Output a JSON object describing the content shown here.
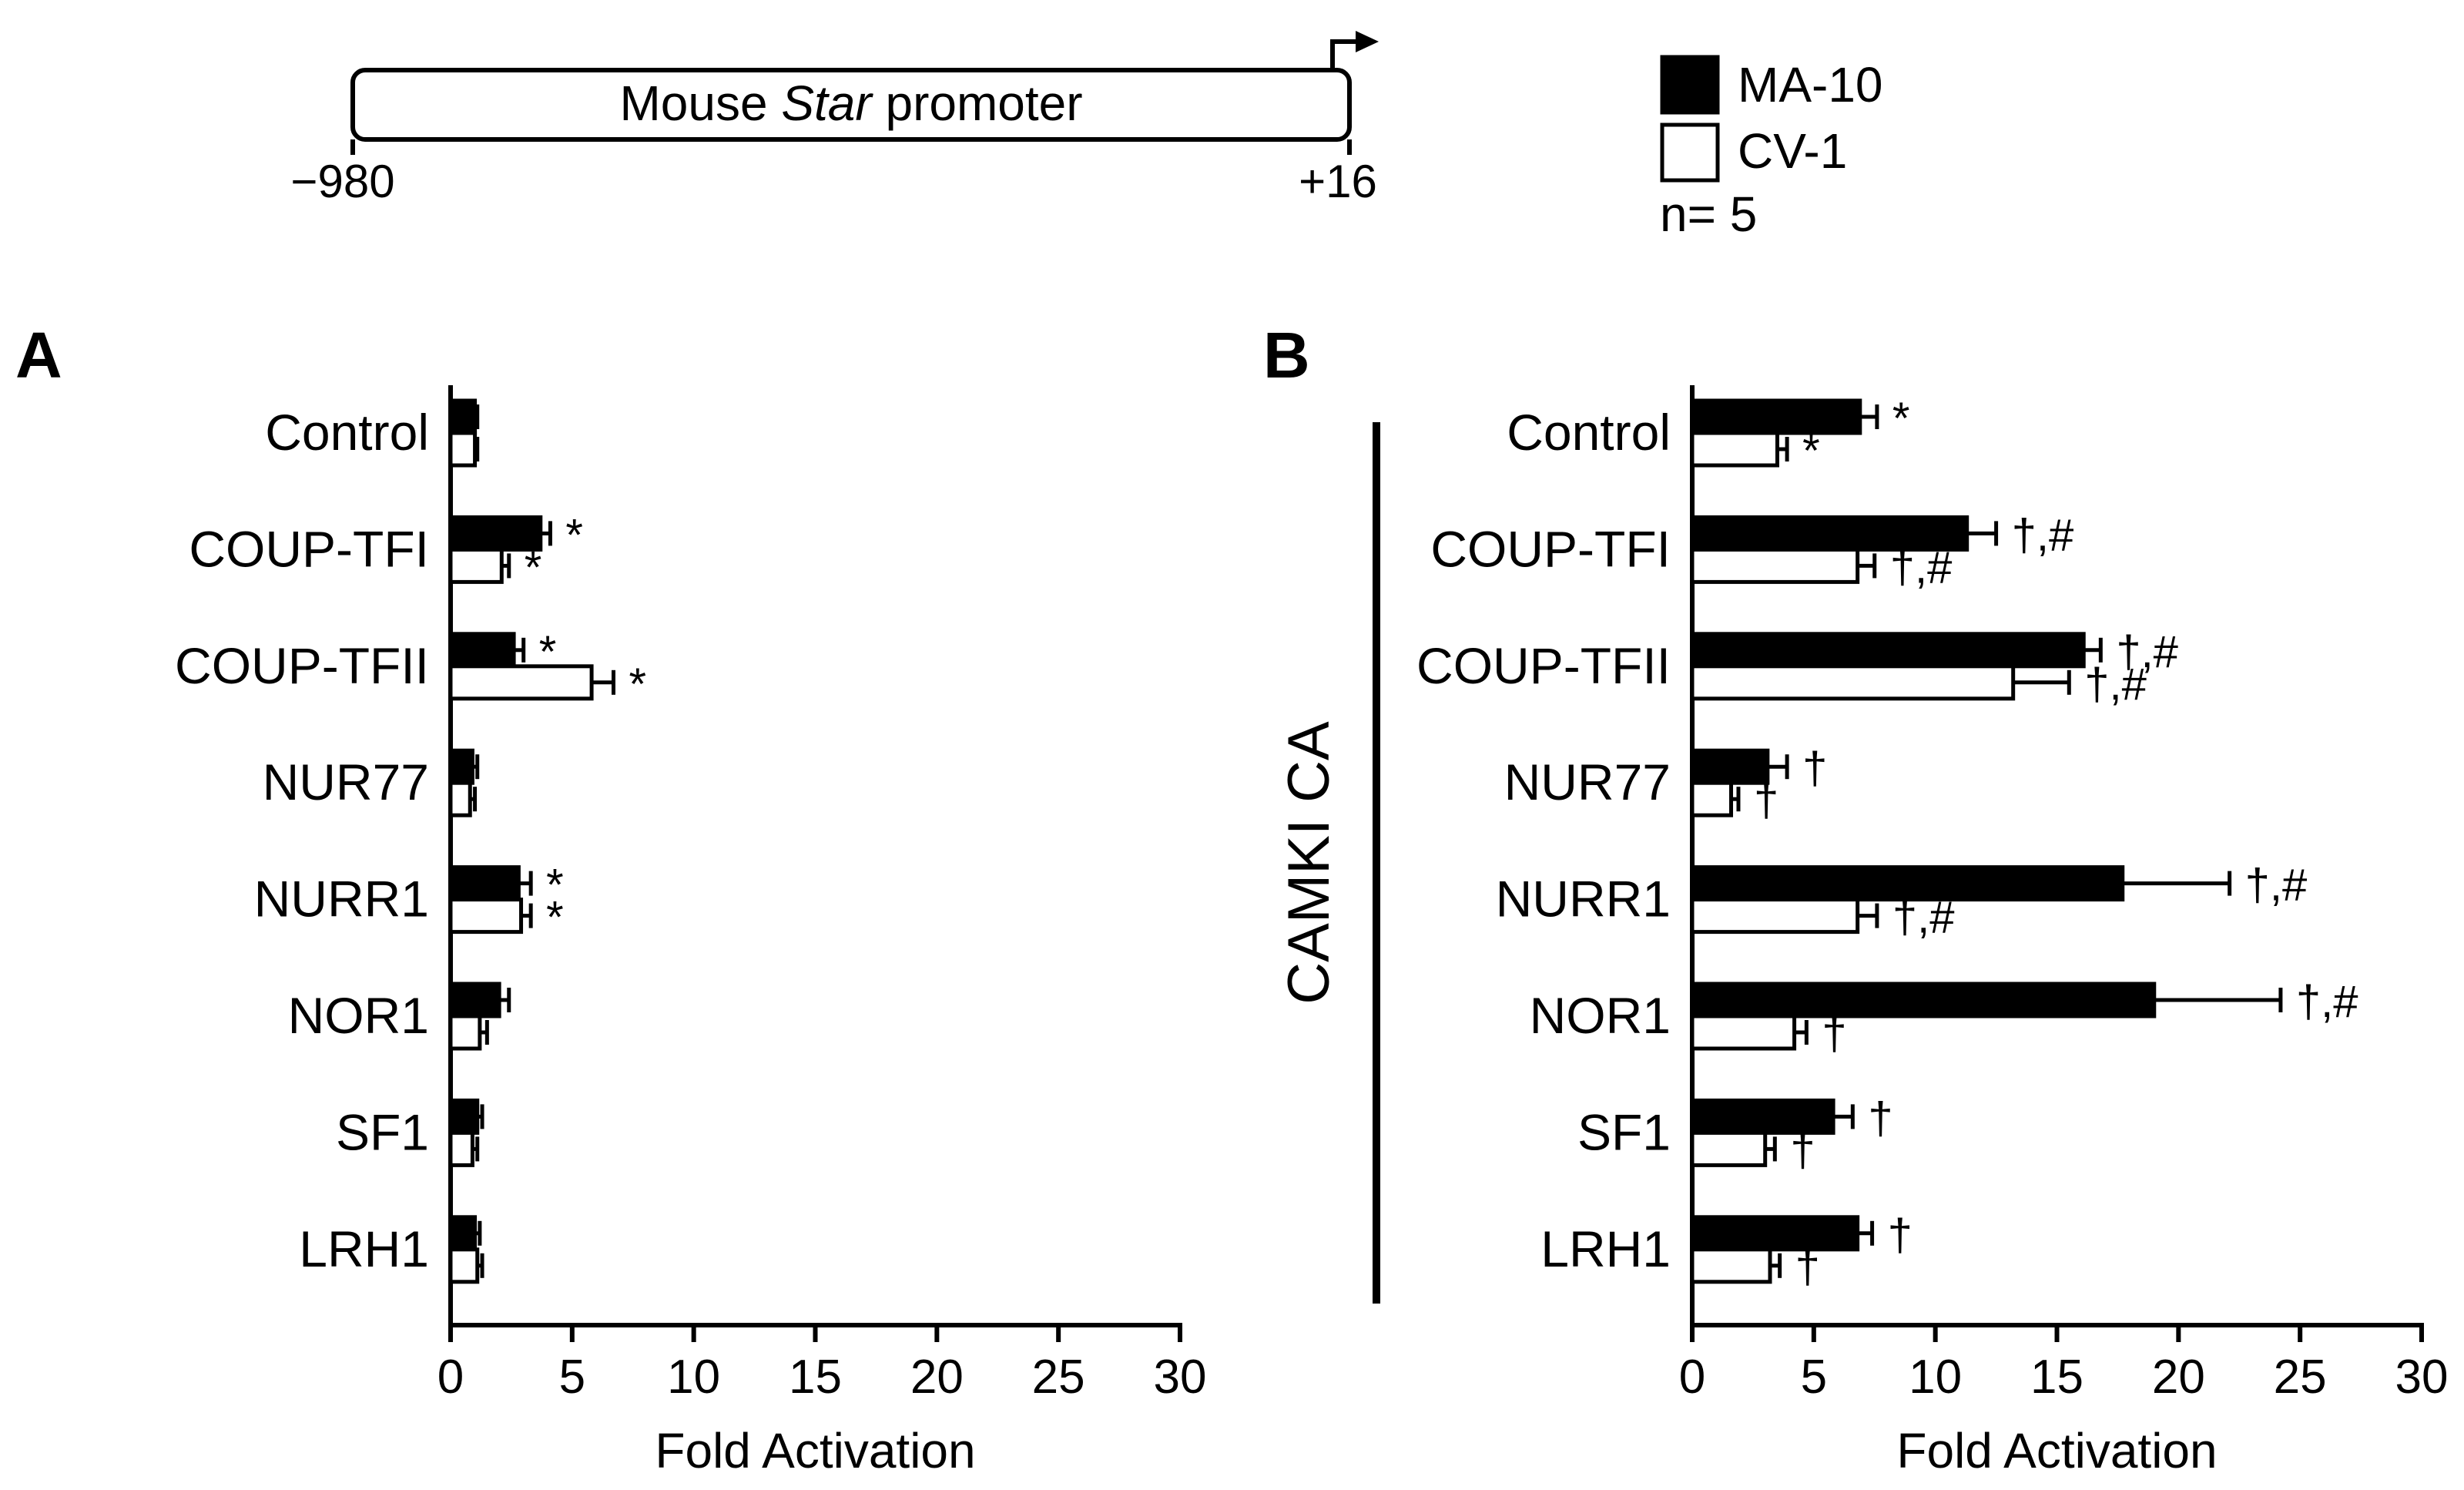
{
  "promoter": {
    "label_prefix": "Mouse ",
    "label_italic": "Star",
    "label_suffix": " promoter",
    "start_label": "−980",
    "end_label": "+16"
  },
  "legend": {
    "series": [
      {
        "name": "MA-10",
        "fill": "#000000"
      },
      {
        "name": "CV-1",
        "fill": "#ffffff"
      }
    ],
    "n_label": "n= 5"
  },
  "colors": {
    "ma10": "#000000",
    "cv1": "#ffffff",
    "stroke": "#000000"
  },
  "chart_data": [
    {
      "type": "bar",
      "orientation": "horizontal",
      "panel": "A",
      "title": "",
      "xlabel": "Fold Activation",
      "ylabel": "",
      "xlim": [
        0,
        30
      ],
      "xticks": [
        0,
        5,
        10,
        15,
        20,
        25,
        30
      ],
      "categories": [
        "Control",
        "COUP-TFI",
        "COUP-TFII",
        "NUR77",
        "NURR1",
        "NOR1",
        "SF1",
        "LRH1"
      ],
      "series": [
        {
          "name": "MA-10",
          "values": [
            1.0,
            3.7,
            2.6,
            0.9,
            2.8,
            2.0,
            1.1,
            1.0
          ],
          "errors": [
            0.1,
            0.4,
            0.4,
            0.2,
            0.5,
            0.4,
            0.2,
            0.2
          ],
          "annotations": [
            "",
            "*",
            "*",
            "",
            "*",
            "",
            "",
            ""
          ]
        },
        {
          "name": "CV-1",
          "values": [
            1.0,
            2.1,
            5.8,
            0.8,
            2.9,
            1.2,
            0.9,
            1.1
          ],
          "errors": [
            0.1,
            0.3,
            0.9,
            0.2,
            0.4,
            0.3,
            0.2,
            0.2
          ],
          "annotations": [
            "",
            "*",
            "*",
            "",
            "*",
            "",
            "",
            ""
          ]
        }
      ]
    },
    {
      "type": "bar",
      "orientation": "horizontal",
      "panel": "B",
      "title": "",
      "group_label": "CAMKI CA",
      "xlabel": "Fold Activation",
      "ylabel": "",
      "xlim": [
        0,
        30
      ],
      "xticks": [
        0,
        5,
        10,
        15,
        20,
        25,
        30
      ],
      "categories": [
        "Control",
        "COUP-TFI",
        "COUP-TFII",
        "NUR77",
        "NURR1",
        "NOR1",
        "SF1",
        "LRH1"
      ],
      "series": [
        {
          "name": "MA-10",
          "values": [
            6.9,
            11.3,
            16.1,
            3.1,
            17.7,
            19.0,
            5.8,
            6.8
          ],
          "errors": [
            0.7,
            1.2,
            0.7,
            0.8,
            4.4,
            5.2,
            0.8,
            0.6
          ],
          "annotations": [
            "*",
            "†,#",
            "†,#",
            "†",
            "†,#",
            "†,#",
            "†",
            "†"
          ]
        },
        {
          "name": "CV-1",
          "values": [
            3.5,
            6.8,
            13.2,
            1.6,
            6.8,
            4.2,
            3.0,
            3.2
          ],
          "errors": [
            0.4,
            0.7,
            2.3,
            0.3,
            0.8,
            0.5,
            0.4,
            0.4
          ],
          "annotations": [
            "*",
            "†,#",
            "†,#",
            "†",
            "†,#",
            "†",
            "†",
            "†"
          ]
        }
      ]
    }
  ]
}
